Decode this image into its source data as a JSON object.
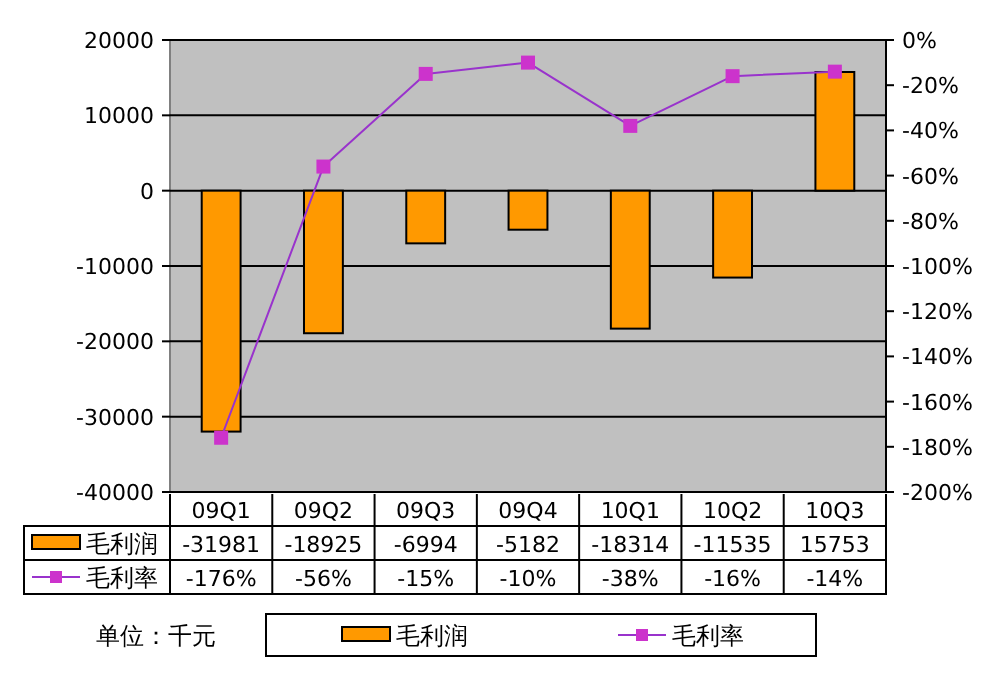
{
  "chart_data": {
    "type": "bar",
    "categories": [
      "09Q1",
      "09Q2",
      "09Q3",
      "09Q4",
      "10Q1",
      "10Q2",
      "10Q3"
    ],
    "series": [
      {
        "name": "毛利润",
        "color": "#ff9900",
        "values": [
          -31981,
          -18925,
          -6994,
          -5182,
          -18314,
          -11535,
          15753
        ]
      },
      {
        "name": "毛利率",
        "type": "line",
        "axis": "y2",
        "color": "#cc33cc",
        "marker": "square",
        "values": [
          -176,
          -56,
          -15,
          -10,
          -38,
          -16,
          -14
        ],
        "value_labels": [
          "-176%",
          "-56%",
          "-15%",
          "-10%",
          "-38%",
          "-16%",
          "-14%"
        ]
      }
    ],
    "ylim": [
      -40000,
      20000
    ],
    "yticks": [
      -40000,
      -30000,
      -20000,
      -10000,
      0,
      10000,
      20000
    ],
    "y2lim": [
      -200,
      0
    ],
    "y2ticks": [
      {
        "value": -200,
        "label": "-200%"
      },
      {
        "value": -180,
        "label": "-180%"
      },
      {
        "value": -160,
        "label": "-160%"
      },
      {
        "value": -140,
        "label": "-140%"
      },
      {
        "value": -120,
        "label": "-120%"
      },
      {
        "value": -100,
        "label": "-100%"
      },
      {
        "value": -80,
        "label": "-80%"
      },
      {
        "value": -60,
        "label": "-60%"
      },
      {
        "value": -40,
        "label": "-40%"
      },
      {
        "value": -20,
        "label": "-20%"
      },
      {
        "value": 0,
        "label": "0%"
      }
    ],
    "grid": "y",
    "legend": "bottom",
    "data_labels": true,
    "annotations": [
      "单位：千元"
    ]
  }
}
